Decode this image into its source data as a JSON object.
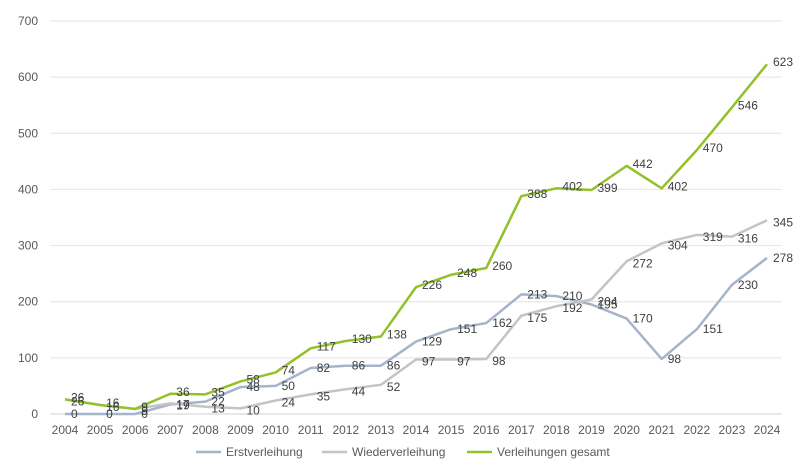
{
  "chart_data": {
    "type": "line",
    "title": "",
    "xlabel": "",
    "ylabel": "",
    "ylim": [
      0,
      700
    ],
    "yticks": [
      0,
      100,
      200,
      300,
      400,
      500,
      600,
      700
    ],
    "grid": "horizontal",
    "legend_position": "bottom",
    "categories": [
      "2004",
      "2005",
      "2006",
      "2007",
      "2008",
      "2009",
      "2010",
      "2011",
      "2012",
      "2013",
      "2014",
      "2015",
      "2016",
      "2017",
      "2018",
      "2019",
      "2020",
      "2021",
      "2022",
      "2023",
      "2024"
    ],
    "series": [
      {
        "name": "Erstverleihung",
        "color": "#a6b4cb",
        "values": [
          0,
          0,
          0,
          17,
          22,
          48,
          50,
          82,
          86,
          86,
          129,
          151,
          162,
          213,
          210,
          195,
          170,
          98,
          151,
          230,
          278
        ]
      },
      {
        "name": "Wiederverleihung",
        "color": "#c4c4c4",
        "values": [
          26,
          16,
          9,
          19,
          13,
          10,
          24,
          35,
          44,
          52,
          97,
          97,
          98,
          175,
          192,
          204,
          272,
          304,
          319,
          316,
          345
        ]
      },
      {
        "name": "Verleihungen gesamt",
        "color": "#92c12a",
        "values": [
          26,
          16,
          9,
          36,
          35,
          58,
          74,
          117,
          130,
          138,
          226,
          248,
          260,
          388,
          402,
          399,
          442,
          402,
          470,
          546,
          623
        ]
      }
    ]
  }
}
